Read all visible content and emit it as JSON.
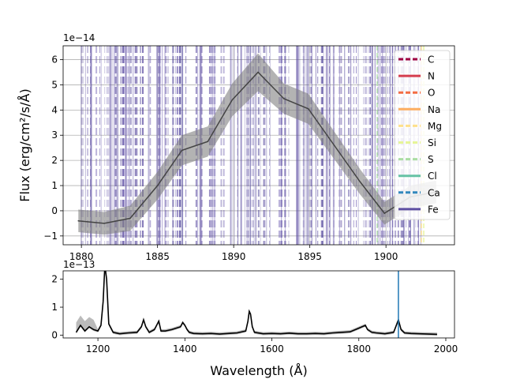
{
  "chart_data": [
    {
      "type": "line",
      "ylabel": "Flux (erg/cm²/s/Å)",
      "offset_label": "1e−14",
      "xlim": [
        1878.8,
        1904.5
      ],
      "ylim": [
        -1.35,
        6.55
      ],
      "xticks": [
        1880,
        1885,
        1890,
        1895,
        1900
      ],
      "xtick_labels": [
        "1880",
        "1885",
        "1890",
        "1895",
        "1900"
      ],
      "yticks": [
        -1,
        0,
        1,
        2,
        3,
        4,
        5,
        6
      ],
      "ytick_labels": [
        "−1",
        "0",
        "1",
        "2",
        "3",
        "4",
        "5",
        "6"
      ],
      "grid": true,
      "legend_position": "upper-right",
      "series": [
        {
          "x": [
            1879.8,
            1881.5,
            1883.2,
            1885.0,
            1886.6,
            1888.3,
            1889.9,
            1891.6,
            1893.3,
            1894.9,
            1896.6,
            1898.3,
            1899.9,
            1901.6,
            1903.3
          ],
          "y": [
            -0.4,
            -0.5,
            -0.3,
            1.0,
            2.4,
            2.75,
            4.4,
            5.5,
            4.45,
            4.05,
            2.6,
            1.15,
            -0.1,
            0.55,
            0.75
          ],
          "err": [
            0.45,
            0.45,
            0.5,
            0.55,
            0.6,
            0.6,
            0.65,
            0.75,
            0.6,
            0.6,
            0.55,
            0.5,
            0.45,
            0.45,
            0.45
          ],
          "color": "#444444",
          "band_color": "#808080"
        }
      ],
      "legend": [
        {
          "label": "C",
          "color": "#9e0142",
          "dash": "6,3"
        },
        {
          "label": "N",
          "color": "#d53e4f",
          "dash": ""
        },
        {
          "label": "O",
          "color": "#f46d43",
          "dash": "6,3"
        },
        {
          "label": "Na",
          "color": "#fdae61",
          "dash": ""
        },
        {
          "label": "Mg",
          "color": "#fee08b",
          "dash": "6,3"
        },
        {
          "label": "Si",
          "color": "#e6f598",
          "dash": "6,3"
        },
        {
          "label": "S",
          "color": "#abdda4",
          "dash": "6,3"
        },
        {
          "label": "Cl",
          "color": "#66c2a5",
          "dash": ""
        },
        {
          "label": "Ca",
          "color": "#3288bd",
          "dash": "6,3"
        },
        {
          "label": "Fe",
          "color": "#5e4fa2",
          "dash": ""
        }
      ],
      "line_seed": 7
    },
    {
      "type": "line",
      "xlabel": "Wavelength (Å)",
      "offset_label": "1e−13",
      "xlim": [
        1120,
        2020
      ],
      "ylim": [
        -0.1,
        2.3
      ],
      "xticks": [
        1200,
        1400,
        1600,
        1800,
        2000
      ],
      "xtick_labels": [
        "1200",
        "1400",
        "1600",
        "1800",
        "2000"
      ],
      "yticks": [
        0,
        1,
        2
      ],
      "ytick_labels": [
        "0",
        "1",
        "2"
      ],
      "marker_x": 1891,
      "marker_color": "#1f77b4",
      "series": [
        {
          "x": [
            1150,
            1160,
            1170,
            1180,
            1190,
            1200,
            1207,
            1212,
            1216,
            1220,
            1225,
            1235,
            1250,
            1270,
            1290,
            1300,
            1305,
            1310,
            1318,
            1330,
            1335,
            1340,
            1345,
            1355,
            1370,
            1380,
            1390,
            1395,
            1400,
            1405,
            1410,
            1420,
            1440,
            1460,
            1480,
            1500,
            1520,
            1540,
            1545,
            1548,
            1551,
            1555,
            1560,
            1580,
            1600,
            1620,
            1640,
            1660,
            1680,
            1700,
            1720,
            1740,
            1760,
            1780,
            1800,
            1815,
            1820,
            1830,
            1840,
            1860,
            1880,
            1885,
            1891,
            1897,
            1905,
            1920,
            1940,
            1960,
            1980
          ],
          "y": [
            0.1,
            0.35,
            0.15,
            0.3,
            0.2,
            0.15,
            0.35,
            1.2,
            2.5,
            2.0,
            0.4,
            0.1,
            0.05,
            0.08,
            0.1,
            0.3,
            0.55,
            0.3,
            0.1,
            0.2,
            0.35,
            0.5,
            0.15,
            0.15,
            0.2,
            0.25,
            0.3,
            0.45,
            0.35,
            0.2,
            0.1,
            0.06,
            0.05,
            0.06,
            0.04,
            0.06,
            0.08,
            0.15,
            0.5,
            0.85,
            0.75,
            0.3,
            0.1,
            0.05,
            0.06,
            0.05,
            0.07,
            0.05,
            0.05,
            0.06,
            0.05,
            0.08,
            0.1,
            0.12,
            0.25,
            0.35,
            0.2,
            0.1,
            0.08,
            0.05,
            0.1,
            0.3,
            0.55,
            0.2,
            0.08,
            0.06,
            0.05,
            0.04,
            0.03
          ],
          "color": "#000000",
          "band_color": "#aaaaaa"
        }
      ]
    }
  ]
}
